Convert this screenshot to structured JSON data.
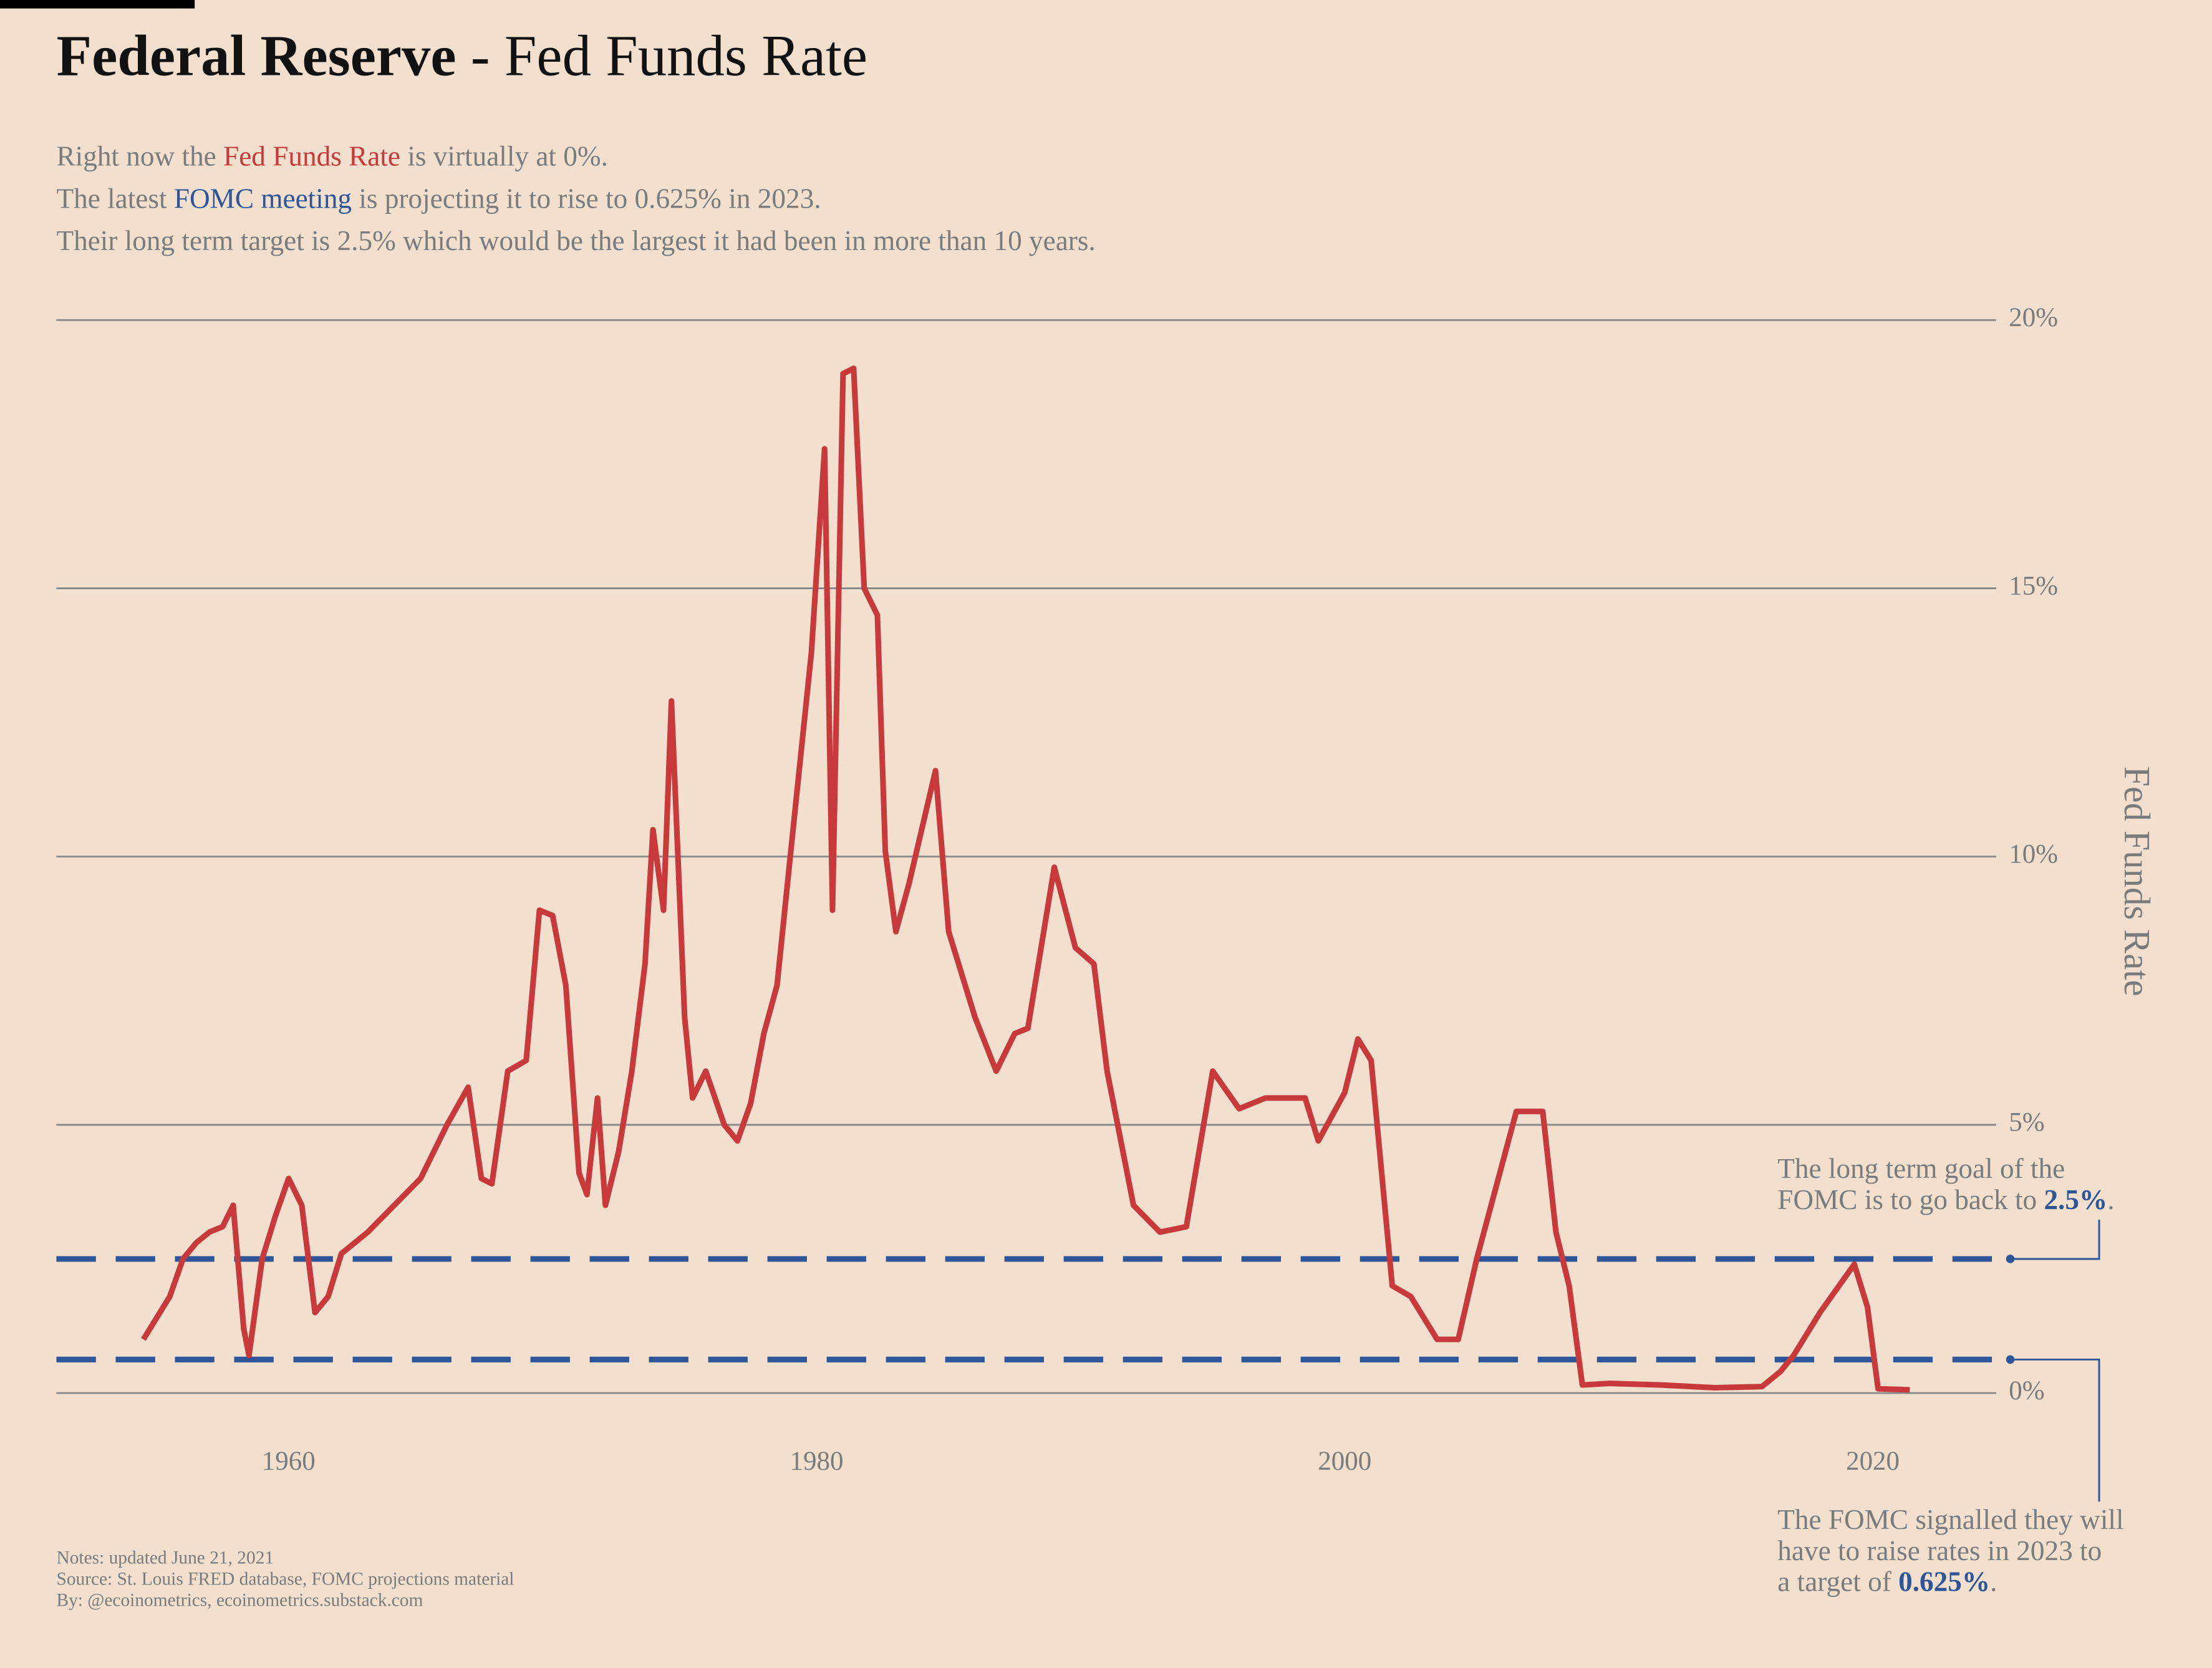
{
  "chart_data": {
    "type": "line",
    "title_bold": "Federal Reserve",
    "title": " - Fed Funds Rate",
    "subtitle": [
      [
        {
          "text": "Right now the "
        },
        {
          "text": "Fed Funds Rate",
          "color": "#c8393b"
        },
        {
          "text": " is virtually at 0%."
        }
      ],
      [
        {
          "text": "The latest "
        },
        {
          "text": "FOMC meeting",
          "color": "#2e5597"
        },
        {
          "text": " is projecting it to rise to 0.625% in 2023."
        }
      ],
      [
        {
          "text": "Their long term target is 2.5% which would be the largest it had been in more than 10 years."
        }
      ]
    ],
    "y_label": "Fed Funds Rate",
    "xlim": [
      1951.1,
      2025.1
    ],
    "xticks": [
      1960,
      1980,
      2000,
      2020
    ],
    "ylim": [
      0,
      20
    ],
    "yticks": [
      {
        "value": 0,
        "label": "0%"
      },
      {
        "value": 5,
        "label": "5%"
      },
      {
        "value": 10,
        "label": "10%"
      },
      {
        "value": 15,
        "label": "15%"
      },
      {
        "value": 20,
        "label": "20%"
      }
    ],
    "grid": true,
    "x": [
      1954.5,
      1955,
      1955.5,
      1956,
      1956.5,
      1957,
      1957.5,
      1957.9,
      1958.3,
      1958.5,
      1959,
      1959.5,
      1960,
      1960.5,
      1961,
      1961.5,
      1962,
      1963,
      1964,
      1965,
      1966,
      1966.8,
      1967.3,
      1967.7,
      1968.3,
      1969,
      1969.5,
      1970,
      1970.5,
      1971,
      1971.3,
      1971.7,
      1972,
      1972.5,
      1973,
      1973.5,
      1973.8,
      1974.2,
      1974.5,
      1975,
      1975.3,
      1975.8,
      1976.5,
      1977,
      1977.5,
      1978,
      1978.5,
      1979,
      1979.8,
      1980.3,
      1980.6,
      1981,
      1981.4,
      1981.8,
      1982.3,
      1982.6,
      1983,
      1983.5,
      1984.5,
      1985,
      1986,
      1986.8,
      1987.5,
      1988,
      1989,
      1989.8,
      1990.5,
      1991,
      1992,
      1993,
      1994,
      1995,
      1996,
      1997,
      1998.5,
      1999,
      2000,
      2000.5,
      2001,
      2001.8,
      2002.5,
      2003.5,
      2004.3,
      2005,
      2006.5,
      2007.5,
      2008,
      2008.5,
      2009,
      2010,
      2012,
      2014,
      2015.8,
      2016.5,
      2017,
      2018,
      2019.3,
      2019.8,
      2020.2,
      2021.4
    ],
    "series": [
      {
        "name": "Fed Funds Rate",
        "color": "#c8393b",
        "values": [
          1.0,
          1.4,
          1.8,
          2.5,
          2.8,
          3.0,
          3.1,
          3.5,
          1.2,
          0.7,
          2.5,
          3.3,
          4.0,
          3.5,
          1.5,
          1.8,
          2.6,
          3.0,
          3.5,
          4.0,
          5.0,
          5.7,
          4.0,
          3.9,
          6.0,
          6.2,
          9.0,
          8.9,
          7.6,
          4.1,
          3.7,
          5.5,
          3.5,
          4.5,
          6.0,
          8.0,
          10.5,
          9.0,
          12.9,
          7.0,
          5.5,
          6.0,
          5.0,
          4.7,
          5.4,
          6.7,
          7.6,
          10.0,
          13.8,
          17.6,
          9.0,
          19.0,
          19.1,
          15.0,
          14.5,
          10.1,
          8.6,
          9.5,
          11.6,
          8.6,
          7.0,
          6.0,
          6.7,
          6.8,
          9.8,
          8.3,
          8.0,
          6.0,
          3.5,
          3.0,
          3.1,
          6.0,
          5.3,
          5.5,
          5.5,
          4.7,
          5.6,
          6.6,
          6.2,
          2.0,
          1.8,
          1.0,
          1.0,
          2.5,
          5.25,
          5.25,
          3.0,
          2.0,
          0.15,
          0.18,
          0.15,
          0.1,
          0.12,
          0.4,
          0.7,
          1.5,
          2.4,
          1.6,
          0.08,
          0.06
        ]
      }
    ],
    "reference_lines": [
      {
        "value": 2.5,
        "label": "2.5%",
        "color": "#2e5597"
      },
      {
        "value": 0.625,
        "label": "0.625%",
        "color": "#2e5597"
      }
    ],
    "annotations": [
      {
        "lines": [
          "The long term goal of the",
          "FOMC is to go back to "
        ],
        "suffix": "."
      },
      {
        "lines": [
          "The FOMC signalled they will",
          "have to raise rates in 2023 to",
          "a target of "
        ],
        "suffix": "."
      }
    ],
    "notes": [
      "Notes: updated June 21, 2021",
      "Source: St. Louis FRED database, FOMC projections material",
      "By: @ecoinometrics, ecoinometrics.substack.com"
    ]
  }
}
